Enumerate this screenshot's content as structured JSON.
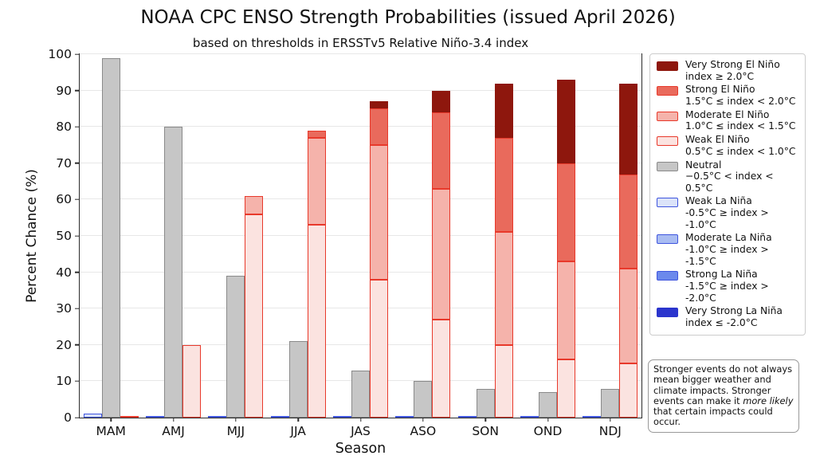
{
  "chart_data": {
    "type": "bar",
    "subtype": "grouped-stacked",
    "title": "NOAA CPC ENSO Strength Probabilities (issued April 2026)",
    "subtitle": "based on thresholds in ERSSTv5 Relative Niño-3.4 index",
    "xlabel": "Season",
    "ylabel": "Percent Chance (%)",
    "ylim": [
      0,
      100
    ],
    "yticks": [
      0,
      10,
      20,
      30,
      40,
      50,
      60,
      70,
      80,
      90,
      100
    ],
    "grid": "horizontal",
    "legend_position": "right",
    "categories": [
      "MAM",
      "AMJ",
      "MJJ",
      "JJA",
      "JAS",
      "ASO",
      "SON",
      "OND",
      "NDJ"
    ],
    "stacks_order": [
      "la_nina",
      "neutral",
      "el_nino"
    ],
    "series": [
      {
        "name": "Weak La Niña",
        "stack": "la_nina",
        "order": 0,
        "fill": "#dbe3f9",
        "edge": "#3f55de",
        "values": [
          1,
          0.4,
          0.4,
          0.4,
          0.4,
          0.4,
          0.4,
          0.4,
          0.4
        ]
      },
      {
        "name": "Moderate La Niña",
        "stack": "la_nina",
        "order": 1,
        "fill": "#a9bcf2",
        "edge": "#3f55de",
        "values": [
          0,
          0,
          0,
          0,
          0,
          0,
          0,
          0,
          0
        ]
      },
      {
        "name": "Strong La Niña",
        "stack": "la_nina",
        "order": 2,
        "fill": "#6c89ec",
        "edge": "#3f55de",
        "values": [
          0,
          0,
          0,
          0,
          0,
          0,
          0,
          0,
          0
        ]
      },
      {
        "name": "Very Strong La Niña",
        "stack": "la_nina",
        "order": 3,
        "fill": "#2b35cd",
        "edge": "#2b35cd",
        "values": [
          0,
          0,
          0,
          0,
          0,
          0,
          0,
          0,
          0
        ]
      },
      {
        "name": "Neutral",
        "stack": "neutral",
        "order": 0,
        "fill": "#c6c6c6",
        "edge": "#8a8a8a",
        "values": [
          99,
          80,
          39,
          21,
          13,
          10,
          8,
          7,
          8
        ]
      },
      {
        "name": "Weak El Niño",
        "stack": "el_nino",
        "order": 0,
        "fill": "#fbe3e0",
        "edge": "#e8392b",
        "values": [
          0.4,
          20,
          56,
          53,
          38,
          27,
          20,
          16,
          15
        ]
      },
      {
        "name": "Moderate El Niño",
        "stack": "el_nino",
        "order": 1,
        "fill": "#f5b3ab",
        "edge": "#e8392b",
        "values": [
          0,
          0,
          5,
          24,
          37,
          36,
          31,
          27,
          26
        ]
      },
      {
        "name": "Strong El Niño",
        "stack": "el_nino",
        "order": 2,
        "fill": "#e96a5c",
        "edge": "#e8392b",
        "values": [
          0,
          0,
          0,
          2,
          10,
          21,
          26,
          27,
          26
        ]
      },
      {
        "name": "Very Strong El Niño",
        "stack": "el_nino",
        "order": 3,
        "fill": "#8e170d",
        "edge": "#8e170d",
        "values": [
          0,
          0,
          0,
          0,
          2,
          6,
          15,
          23,
          25
        ]
      }
    ],
    "el_nino_totals": [
      0,
      20,
      61,
      79,
      87,
      90,
      92,
      93,
      92
    ],
    "legend": [
      {
        "label": "Very Strong El Niño",
        "range": "index ≥ 2.0°C",
        "fill": "#8e170d",
        "edge": "#8e170d"
      },
      {
        "label": "Strong El Niño",
        "range": "1.5°C ≤ index < 2.0°C",
        "fill": "#e96a5c",
        "edge": "#e8392b"
      },
      {
        "label": "Moderate El Niño",
        "range": "1.0°C ≤ index < 1.5°C",
        "fill": "#f5b3ab",
        "edge": "#e8392b"
      },
      {
        "label": "Weak El Niño",
        "range": "0.5°C ≤ index < 1.0°C",
        "fill": "#fbe3e0",
        "edge": "#e8392b"
      },
      {
        "label": "Neutral",
        "range": "−0.5°C < index < 0.5°C",
        "fill": "#c6c6c6",
        "edge": "#8a8a8a"
      },
      {
        "label": "Weak La Niña",
        "range": "-0.5°C ≥ index > -1.0°C",
        "fill": "#dbe3f9",
        "edge": "#3f55de"
      },
      {
        "label": "Moderate La Niña",
        "range": "-1.0°C ≥ index > -1.5°C",
        "fill": "#a9bcf2",
        "edge": "#3f55de"
      },
      {
        "label": "Strong La Niña",
        "range": "-1.5°C ≥ index > -2.0°C",
        "fill": "#6c89ec",
        "edge": "#3f55de"
      },
      {
        "label": "Very Strong La Niña",
        "range": "index ≤ -2.0°C",
        "fill": "#2b35cd",
        "edge": "#2b35cd"
      }
    ]
  },
  "note": {
    "text1": "Stronger events do not always mean bigger weather and climate impacts. Stronger events can make it ",
    "italic": "more likely",
    "text2": " that certain impacts could occur."
  }
}
